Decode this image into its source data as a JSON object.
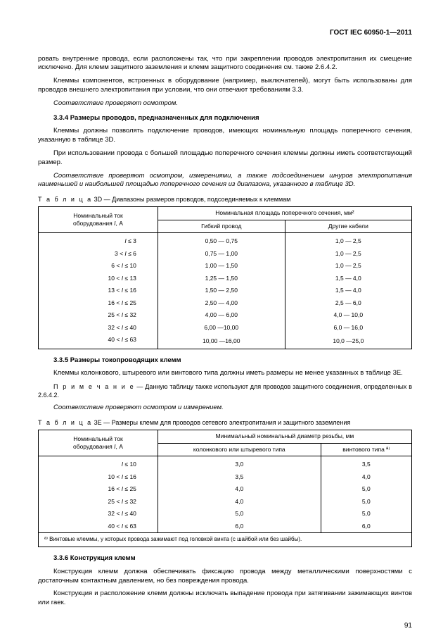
{
  "header": "ГОСТ IEC 60950-1—2011",
  "pageNumber": "91",
  "paras": {
    "p1": "ровать внутренние провода, если расположены так, что при закреплении проводов электропитания их смещение исключено. Для клемм защитного заземления и клемм защитного соединения см. также 2.6.4.2.",
    "p2": "Клеммы компонентов, встроенных в оборудование (например, выключателей), могут быть использованы для проводов внешнего электропитания при условии, что они отвечают требованиям 3.3.",
    "p3": "Соответствие проверяют осмотром.",
    "s334": "3.3.4 Размеры проводов, предназначенных для подключения",
    "p4": "Клеммы должны позволять подключение проводов, имеющих номинальную площадь поперечного сечения, указанную в таблице 3D.",
    "p5": "При использовании провода с большей площадью поперечного сечения клеммы должны иметь соответствующий размер.",
    "p6": "Соответствие проверяют осмотром, измерениями, а также подсоединением шнуров электропитания наименьшей и наибольшей площадью поперечного сечения из диапазона, указанного в таблице 3D.",
    "cap3d_pre": "Т а б л и ц а",
    "cap3d": "  3D — Диапазоны размеров проводов, подсоединяемых к клеммам",
    "s335": "3.3.5 Размеры токопроводящих клемм",
    "p7": "Клеммы колонкового, штыревого или винтового типа должны иметь размеры не менее указанных в таблице 3Е.",
    "p8_pre": "П р и м е ч а н и е",
    "p8": " — Данную таблицу также используют для проводов защитного соединения, определенных в 2.6.4.2.",
    "p9": "Соответствие проверяют осмотром и измерением.",
    "cap3e_pre": "Т а б л и ц а",
    "cap3e": "  3E — Размеры клемм для проводов сетевого электропитания и защитного заземления",
    "s336": "3.3.6 Конструкция клемм",
    "p10": "Конструкция клемм должна обеспечивать фиксацию провода между металлическими поверхностями с достаточным контактным давлением, но без повреждения провода.",
    "p11": "Конструкция и расположение клемм должны исключать выпадение провода при затягивании зажимающих винтов или гаек."
  },
  "table3d": {
    "h1": "Номинальный ток\nоборудования I, А",
    "h2": "Номинальная площадь поперечного сечения, мм²",
    "h2a": "Гибкий провод",
    "h2b": "Другие кабели",
    "rows": [
      {
        "a": "I ≤   3",
        "b": "0,50 — 0,75",
        "c": "1,0 — 2,5"
      },
      {
        "a": "3 < I ≤   6",
        "b": "0,75 — 1,00",
        "c": "1,0 — 2,5"
      },
      {
        "a": "6 < I ≤  10",
        "b": "1,00 — 1,50",
        "c": "1,0 — 2,5"
      },
      {
        "a": "10 < I ≤  13",
        "b": "1,25 — 1,50",
        "c": "1,5 — 4,0"
      },
      {
        "a": "13 < I ≤  16",
        "b": "1,50 — 2,50",
        "c": "1,5 — 4,0"
      },
      {
        "a": "16 < I ≤  25",
        "b": "2,50 — 4,00",
        "c": "2,5 — 6,0"
      },
      {
        "a": "25 < I ≤  32",
        "b": "4,00 — 6,00",
        "c": "4,0 — 10,0"
      },
      {
        "a": "32 < I ≤  40",
        "b": "6,00 —10,00",
        "c": "6,0 — 16,0"
      },
      {
        "a": "40 < I ≤  63",
        "b": "10,00 —16,00",
        "c": "10,0 —25,0"
      }
    ]
  },
  "table3e": {
    "h1": "Номинальный ток\nоборудования I, А",
    "h2": "Минимальный номинальный диаметр резьбы, мм",
    "h2a": "колонкового или штыревого типа",
    "h2b": "винтового типа ª⁾",
    "rows": [
      {
        "a": "I ≤ 10",
        "b": "3,0",
        "c": "3,5"
      },
      {
        "a": "10 < I ≤ 16",
        "b": "3,5",
        "c": "4,0"
      },
      {
        "a": "16 < I ≤ 25",
        "b": "4,0",
        "c": "5,0"
      },
      {
        "a": "25 < I ≤ 32",
        "b": "4,0",
        "c": "5,0"
      },
      {
        "a": "32 < I ≤ 40",
        "b": "5,0",
        "c": "5,0"
      },
      {
        "a": "40 < I ≤ 63",
        "b": "6,0",
        "c": "6,0"
      }
    ],
    "foot": "ª⁾ Винтовые клеммы, у которых провода зажимают под головкой винта (с шайбой или без шайбы)."
  }
}
